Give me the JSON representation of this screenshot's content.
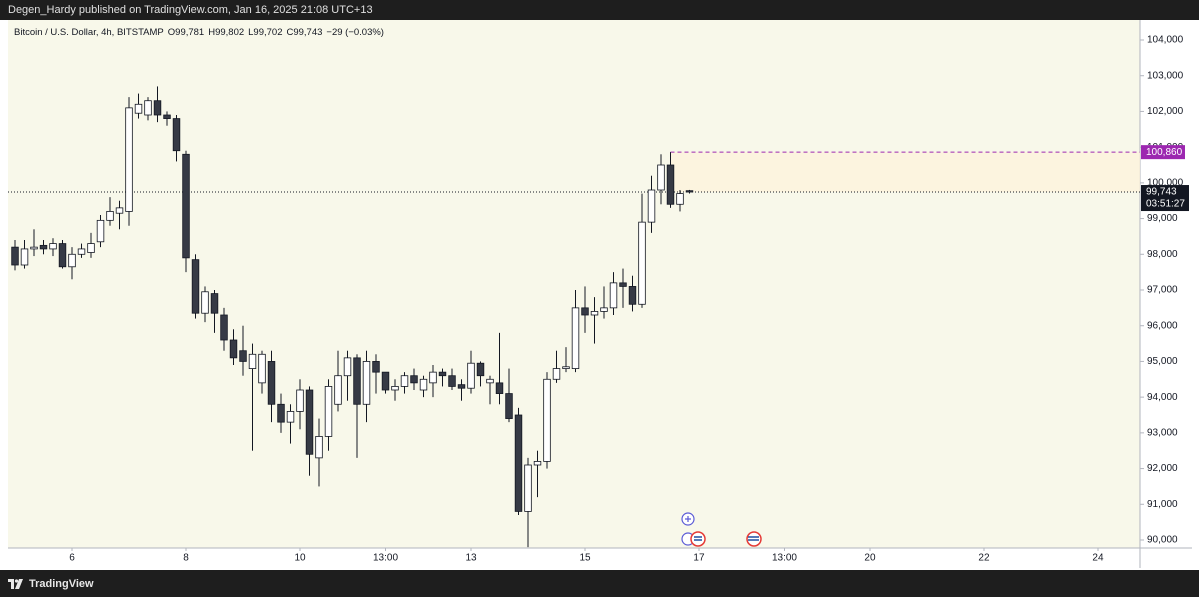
{
  "header": {
    "publisher": "Degen_Hardy published on TradingView.com, Jan 16, 2025 21:08 UTC+13"
  },
  "footer": {
    "brand": "TradingView"
  },
  "chart_data": {
    "type": "candlestick",
    "title": "Bitcoin / U.S. Dollar, 4h, BITSTAMP",
    "ohlc_legend": [
      "O99,781",
      "H99,802",
      "L99,702",
      "C99,743",
      "−29 (−0.03%)"
    ],
    "up_color": "#ffffff",
    "down_color": "#363a45",
    "border_color": "#131722",
    "x": [
      5,
      5.1667,
      5.3333,
      5.5,
      5.6667,
      5.8333,
      6,
      6.1667,
      6.3333,
      6.5,
      6.6667,
      6.8333,
      7,
      7.1667,
      7.3333,
      7.5,
      7.6667,
      7.8333,
      8,
      8.1667,
      8.3333,
      8.5,
      8.6667,
      8.8333,
      9,
      9.1667,
      9.3333,
      9.5,
      9.6667,
      9.8333,
      10,
      10.1667,
      10.3333,
      10.5,
      10.6667,
      10.8333,
      11,
      11.1667,
      11.3333,
      11.5,
      11.6667,
      11.8333,
      12,
      12.1667,
      12.3333,
      12.5,
      12.6667,
      12.8333,
      13,
      13.1667,
      13.3333,
      13.5,
      13.6667,
      13.8333,
      14,
      14.1667,
      14.3333,
      14.5,
      14.6667,
      14.8333,
      15,
      15.1667,
      15.3333,
      15.5,
      15.6667,
      15.8333,
      16,
      16.1667,
      16.3333,
      16.5,
      16.6667,
      16.8333
    ],
    "open": [
      98200,
      97700,
      98150,
      98250,
      98150,
      98300,
      97650,
      98000,
      98050,
      98350,
      98950,
      99150,
      99200,
      101950,
      101900,
      102300,
      101900,
      101800,
      100800,
      97850,
      96350,
      96900,
      96300,
      95600,
      95300,
      94800,
      94400,
      95000,
      93800,
      93300,
      93600,
      94200,
      92300,
      92900,
      93800,
      94600,
      95100,
      93800,
      95000,
      94700,
      94200,
      94300,
      94600,
      94200,
      94400,
      94700,
      94600,
      94350,
      94250,
      94950,
      94400,
      94400,
      94100,
      93500,
      90800,
      92100,
      92200,
      94500,
      94800,
      94800,
      96500,
      96300,
      96400,
      96500,
      97200,
      97100,
      96600,
      98900,
      99800,
      100500,
      99400,
      99781
    ],
    "high": [
      98400,
      98400,
      98700,
      98400,
      98450,
      98400,
      98200,
      98300,
      98600,
      99100,
      99600,
      99500,
      102400,
      102500,
      102400,
      102700,
      102000,
      101900,
      100900,
      98000,
      97100,
      97000,
      96500,
      95900,
      96000,
      95500,
      95300,
      95300,
      94100,
      93800,
      94500,
      94300,
      93400,
      94500,
      95300,
      95300,
      95200,
      95300,
      95200,
      94700,
      94500,
      94700,
      94800,
      94600,
      94900,
      94800,
      94800,
      94500,
      95300,
      95000,
      94600,
      95800,
      94800,
      93700,
      92300,
      92500,
      94700,
      95300,
      95400,
      97000,
      97100,
      96800,
      97100,
      97500,
      97600,
      97400,
      99700,
      100200,
      100800,
      100860,
      99800,
      99802
    ],
    "low": [
      97550,
      97600,
      97950,
      98000,
      97950,
      97600,
      97300,
      97900,
      97900,
      98200,
      98800,
      98700,
      98800,
      101800,
      101750,
      101700,
      101600,
      100600,
      97500,
      96200,
      96100,
      95800,
      95300,
      94900,
      94600,
      92500,
      94100,
      93300,
      93000,
      92700,
      93100,
      91800,
      91500,
      92500,
      93600,
      93900,
      92300,
      93300,
      94100,
      94100,
      93900,
      94100,
      94200,
      94000,
      94000,
      94300,
      94200,
      93900,
      94100,
      94300,
      93800,
      93800,
      93300,
      90700,
      89800,
      91200,
      92000,
      94400,
      94700,
      94700,
      95800,
      95500,
      96200,
      96300,
      96500,
      96400,
      96500,
      98600,
      99400,
      99300,
      99200,
      99702
    ],
    "close": [
      97700,
      98150,
      98200,
      98150,
      98300,
      97650,
      98000,
      98150,
      98300,
      98950,
      99200,
      99300,
      102100,
      102200,
      102300,
      101900,
      101800,
      100900,
      97900,
      96350,
      96950,
      96350,
      95600,
      95100,
      95000,
      95200,
      95200,
      93800,
      93300,
      93600,
      94200,
      92400,
      92900,
      94300,
      94600,
      95100,
      93800,
      95000,
      94700,
      94200,
      94300,
      94600,
      94400,
      94500,
      94700,
      94600,
      94300,
      94250,
      94950,
      94600,
      94500,
      94100,
      93400,
      90800,
      92100,
      92200,
      94500,
      94800,
      94850,
      96500,
      96300,
      96400,
      96500,
      97200,
      97100,
      96600,
      98900,
      99800,
      100500,
      99400,
      99700,
      99743
    ],
    "xlim": [
      4.877,
      24.737
    ],
    "xticks": [
      6,
      8,
      10,
      {
        "value": 11.5,
        "label": "13:00"
      },
      13,
      15,
      17,
      {
        "value": 18.5,
        "label": "13:00"
      },
      20,
      22,
      24
    ],
    "ylim": [
      89776,
      104560
    ],
    "yticks": [
      {
        "value": 90000,
        "label": "90,000"
      },
      {
        "value": 91000,
        "label": "91,000"
      },
      {
        "value": 92000,
        "label": "92,000"
      },
      {
        "value": 93000,
        "label": "93,000"
      },
      {
        "value": 94000,
        "label": "94,000"
      },
      {
        "value": 95000,
        "label": "95,000"
      },
      {
        "value": 96000,
        "label": "96,000"
      },
      {
        "value": 97000,
        "label": "97,000"
      },
      {
        "value": 98000,
        "label": "98,000"
      },
      {
        "value": 99000,
        "label": "99,000"
      },
      {
        "value": 100000,
        "label": "100,000"
      },
      {
        "value": 101000,
        "label": "101,000"
      },
      {
        "value": 102000,
        "label": "102,000"
      },
      {
        "value": 103000,
        "label": "103,000"
      },
      {
        "value": 104000,
        "label": "104,000"
      }
    ],
    "last_price": {
      "value": 99743,
      "label": "99,743",
      "countdown": "03:51:27"
    },
    "high_line": {
      "value": 100860,
      "label": "100,860",
      "color": "#9c27b0"
    }
  }
}
